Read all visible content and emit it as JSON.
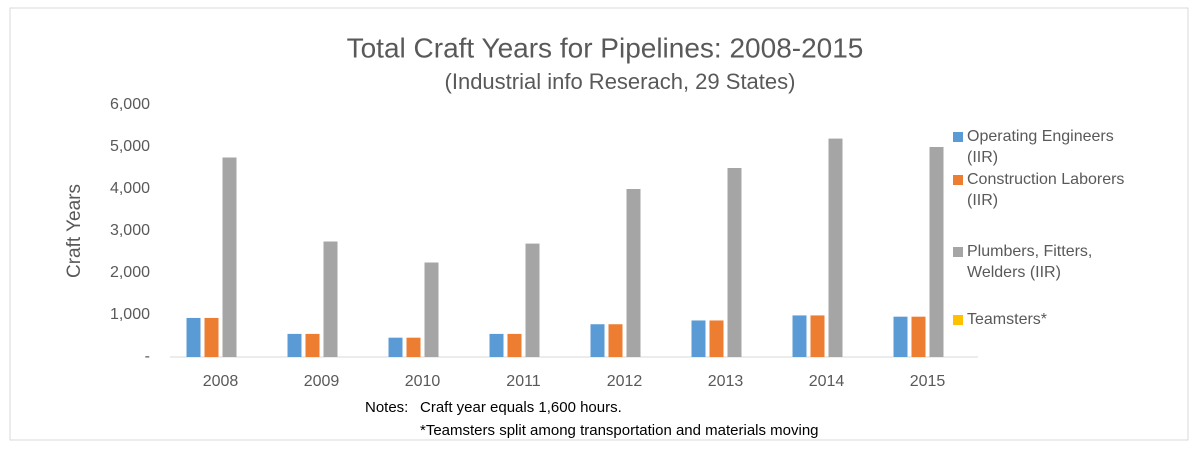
{
  "chart_data": {
    "type": "bar",
    "title": "Total Craft Years for Pipelines: 2008-2015",
    "subtitle": "(Industrial info Reserach, 29 States)",
    "y_label": "Craft Years",
    "categories": [
      "2008",
      "2009",
      "2010",
      "2011",
      "2012",
      "2013",
      "2014",
      "2015"
    ],
    "series": [
      {
        "name": "Operating Engineers (IIR)",
        "color": "#5b9bd5",
        "values": [
          930,
          550,
          460,
          550,
          780,
          870,
          990,
          960
        ]
      },
      {
        "name": "Construction Laborers (IIR)",
        "color": "#ed7d31",
        "values": [
          930,
          550,
          460,
          550,
          780,
          870,
          990,
          960
        ]
      },
      {
        "name": "Plumbers, Fitters, Welders (IIR)",
        "color": "#a5a5a5",
        "values": [
          4750,
          2750,
          2250,
          2700,
          4000,
          4500,
          5200,
          5000
        ]
      },
      {
        "name": "Teamsters*",
        "color": "#ffc000",
        "values": [
          0,
          0,
          0,
          0,
          0,
          0,
          0,
          0
        ]
      }
    ],
    "ylim": [
      0,
      6000
    ],
    "yticks": [
      {
        "value": 0,
        "label": "-"
      },
      {
        "value": 1000,
        "label": "1,000"
      },
      {
        "value": 2000,
        "label": "2,000"
      },
      {
        "value": 3000,
        "label": "3,000"
      },
      {
        "value": 4000,
        "label": "4,000"
      },
      {
        "value": 5000,
        "label": "5,000"
      },
      {
        "value": 6000,
        "label": "6,000"
      }
    ],
    "legend": "right",
    "notes": [
      "Notes:",
      "Craft year equals 1,600 hours.",
      "*Teamsters split among transportation and  materials moving"
    ]
  }
}
